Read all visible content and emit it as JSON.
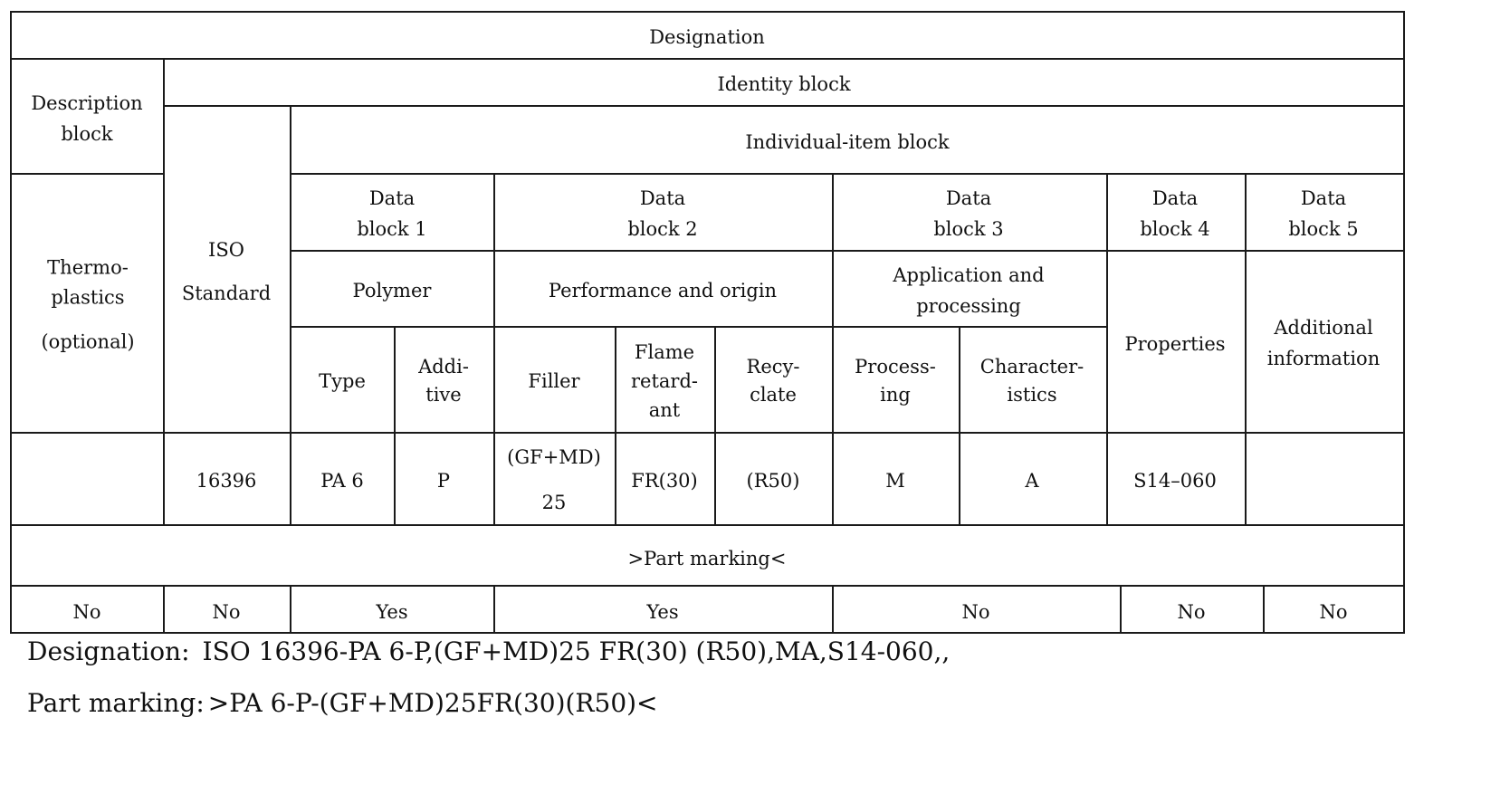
{
  "table": {
    "designation_header": "Designation",
    "description_block": [
      "Description",
      "block"
    ],
    "identity_block": "Identity block",
    "individual_item_block": "Individual-item block",
    "description_content": [
      "Thermo-",
      "plastics",
      "(optional)"
    ],
    "iso_standard": [
      "ISO",
      "Standard"
    ],
    "data_blocks": [
      [
        "Data",
        "block 1"
      ],
      [
        "Data",
        "block 2"
      ],
      [
        "Data",
        "block 3"
      ],
      [
        "Data",
        "block 4"
      ],
      [
        "Data",
        "block 5"
      ]
    ],
    "group_labels": {
      "polymer": "Polymer",
      "performance": "Performance and origin",
      "application": [
        "Application and",
        "processing"
      ],
      "properties": "Properties",
      "additional": [
        "Additional",
        "information"
      ]
    },
    "sub_labels": {
      "type": "Type",
      "additive": [
        "Addi-",
        "tive"
      ],
      "filler": "Filler",
      "flame": [
        "Flame",
        "retard-",
        "ant"
      ],
      "recyclate": [
        "Recy-",
        "clate"
      ],
      "processing": [
        "Process-",
        "ing"
      ],
      "characteristics": [
        "Character-",
        "istics"
      ]
    },
    "example_row": {
      "iso": "16396",
      "type": "PA 6",
      "additive": "P",
      "filler": [
        "(GF+MD)",
        "25"
      ],
      "flame": "FR(30)",
      "recyclate": "(R50)",
      "processing": "M",
      "characteristics": "A",
      "properties": "S14–060",
      "additional": ""
    },
    "part_marking_header": ">Part marking<",
    "part_marking_row": [
      "No",
      "No",
      "Yes",
      "Yes",
      "No",
      "No",
      "No"
    ]
  },
  "footer": {
    "designation_label": "Designation:",
    "designation_value": "ISO 16396-PA 6-P,(GF+MD)25 FR(30) (R50),MA,S14-060,,",
    "part_marking_label": "Part marking:",
    "part_marking_value": ">PA 6-P-(GF+MD)25FR(30)(R50)<"
  }
}
